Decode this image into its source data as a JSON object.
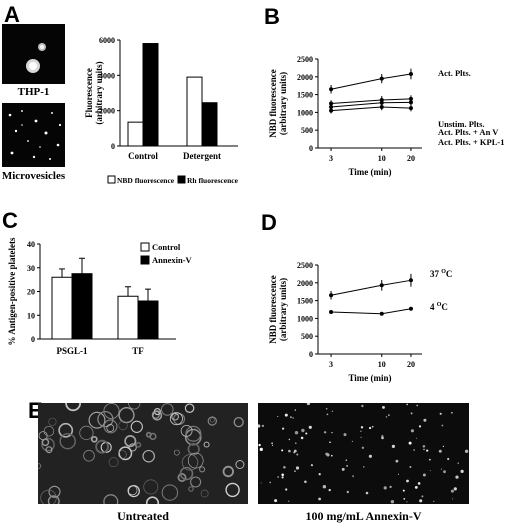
{
  "panels": {
    "A": "A",
    "B": "B",
    "C": "C",
    "D": "D",
    "E": "E"
  },
  "images": {
    "thp1_label": "THP-1",
    "microvesicles_label": "Microvesicles",
    "untreated_label": "Untreated",
    "annexin_label": "100 mg/mL Annexin-V"
  },
  "chart_data": [
    {
      "id": "A",
      "type": "bar",
      "categories": [
        "Control",
        "Detergent"
      ],
      "series": [
        {
          "name": "NBD fluorescence",
          "values": [
            1350,
            3900
          ],
          "color": "#ffffff"
        },
        {
          "name": "Rh fluorescence",
          "values": [
            5800,
            2450
          ],
          "color": "#000000"
        }
      ],
      "ylabel": "Fluorescence (arbitrary units)",
      "ylabel_lines": [
        "Fluorescence",
        "(arbitrary units)"
      ],
      "ylim": [
        0,
        6000
      ],
      "yticks": [
        "0",
        "2000",
        "4000",
        "6000"
      ],
      "legend": "bottom"
    },
    {
      "id": "B",
      "type": "line",
      "x": [
        3,
        10,
        20
      ],
      "xticks": [
        "3",
        "10",
        "20"
      ],
      "xlabel": "Time (min)",
      "ylabel": "NBD fluorescence (arbitrary units)",
      "ylabel_lines": [
        "NBD fluorescence",
        "(arbitrary units)"
      ],
      "ylim": [
        0,
        2500
      ],
      "yticks": [
        "0",
        "500",
        "1000",
        "1500",
        "2000",
        "2500"
      ],
      "series": [
        {
          "name": "Act. Plts.",
          "values": [
            1650,
            1950,
            2080
          ],
          "errors": [
            120,
            130,
            150
          ]
        },
        {
          "name": "Unstim. Plts.",
          "values": [
            1250,
            1350,
            1380
          ],
          "errors": [
            90,
            110,
            100
          ]
        },
        {
          "name": "Act. Plts. + An V",
          "values": [
            1150,
            1270,
            1280
          ],
          "errors": [
            80,
            90,
            90
          ]
        },
        {
          "name": "Act. Plts. + KPL-1",
          "values": [
            1050,
            1150,
            1120
          ],
          "errors": [
            80,
            90,
            90
          ]
        }
      ]
    },
    {
      "id": "C",
      "type": "bar",
      "categories": [
        "PSGL-1",
        "TF"
      ],
      "series": [
        {
          "name": "Control",
          "values": [
            26,
            18
          ],
          "errors": [
            3.5,
            4
          ],
          "color": "#ffffff"
        },
        {
          "name": "Annexin-V",
          "values": [
            27.5,
            16
          ],
          "errors": [
            6.5,
            5
          ],
          "color": "#000000"
        }
      ],
      "ylabel": "% Antigen-positive platelets",
      "ylim": [
        0,
        40
      ],
      "yticks": [
        "0",
        "10",
        "20",
        "30",
        "40"
      ],
      "legend": "top-right"
    },
    {
      "id": "D",
      "type": "line",
      "x": [
        3,
        10,
        20
      ],
      "xticks": [
        "3",
        "10",
        "20"
      ],
      "xlabel": "Time (min)",
      "ylabel": "NBD fluorescence (arbitrary units)",
      "ylabel_lines": [
        "NBD fluorescence",
        "(arbitrary units)"
      ],
      "ylim": [
        0,
        2500
      ],
      "yticks": [
        "0",
        "500",
        "1000",
        "1500",
        "2000",
        "2500"
      ],
      "series": [
        {
          "name": "37 °C",
          "label_num": "37",
          "label_unit": "O",
          "label_end": "C",
          "values": [
            1650,
            1930,
            2070
          ],
          "errors": [
            120,
            150,
            180
          ]
        },
        {
          "name": "4 °C",
          "label_num": "4",
          "label_unit": "O",
          "label_end": "C",
          "values": [
            1180,
            1130,
            1270
          ],
          "errors": [
            0,
            0,
            0
          ]
        }
      ]
    }
  ]
}
